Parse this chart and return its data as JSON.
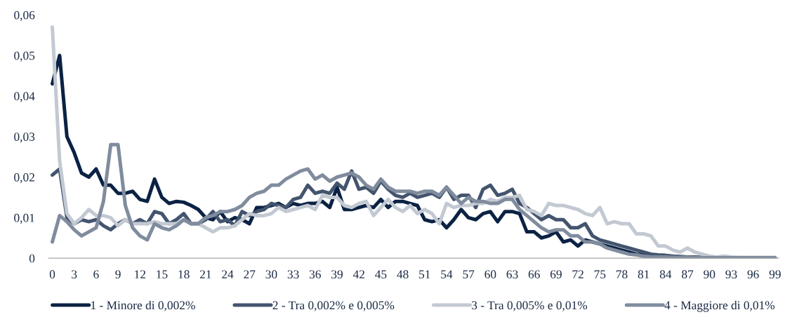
{
  "chart_data": {
    "type": "line",
    "x": [
      0,
      1,
      2,
      3,
      4,
      5,
      6,
      7,
      8,
      9,
      10,
      11,
      12,
      13,
      14,
      15,
      16,
      17,
      18,
      19,
      20,
      21,
      22,
      23,
      24,
      25,
      26,
      27,
      28,
      29,
      30,
      31,
      32,
      33,
      34,
      35,
      36,
      37,
      38,
      39,
      40,
      41,
      42,
      43,
      44,
      45,
      46,
      47,
      48,
      49,
      50,
      51,
      52,
      53,
      54,
      55,
      56,
      57,
      58,
      59,
      60,
      61,
      62,
      63,
      64,
      65,
      66,
      67,
      68,
      69,
      70,
      71,
      72,
      73,
      74,
      75,
      76,
      77,
      78,
      79,
      80,
      81,
      82,
      83,
      84,
      85,
      86,
      87,
      88,
      89,
      90,
      91,
      92,
      93,
      94,
      95,
      96,
      97,
      98,
      99
    ],
    "series": [
      {
        "name": "1 - Minore di 0,002%",
        "color": "#0b2244",
        "values": [
          0.043,
          0.05,
          0.03,
          0.026,
          0.021,
          0.02,
          0.022,
          0.018,
          0.018,
          0.016,
          0.016,
          0.0165,
          0.0145,
          0.014,
          0.0195,
          0.015,
          0.0135,
          0.014,
          0.0138,
          0.013,
          0.012,
          0.01,
          0.0095,
          0.0115,
          0.009,
          0.01,
          0.0095,
          0.0085,
          0.0125,
          0.0125,
          0.013,
          0.0135,
          0.0125,
          0.0135,
          0.013,
          0.0135,
          0.0135,
          0.014,
          0.0125,
          0.0175,
          0.012,
          0.012,
          0.0125,
          0.013,
          0.0125,
          0.0145,
          0.0125,
          0.014,
          0.014,
          0.0135,
          0.013,
          0.0095,
          0.009,
          0.0095,
          0.0075,
          0.0095,
          0.012,
          0.01,
          0.0095,
          0.011,
          0.0115,
          0.009,
          0.0115,
          0.0115,
          0.011,
          0.0065,
          0.0065,
          0.005,
          0.0055,
          0.0065,
          0.004,
          0.0045,
          0.003,
          0.0045,
          0.004,
          0.0035,
          0.003,
          0.0025,
          0.002,
          0.0015,
          0.001,
          0.0008,
          0.0007,
          0.0005,
          0.0004,
          0.0003,
          0.0003,
          0.0002,
          0.0002,
          0.0001,
          0.0001,
          0.0001,
          0.0001,
          0.0001,
          0.0001,
          0.0001,
          0,
          0,
          0,
          0
        ]
      },
      {
        "name": "2 - Tra 0,002% e 0,005%",
        "color": "#43546e",
        "values": [
          0.0205,
          0.022,
          0.01,
          0.0085,
          0.0095,
          0.009,
          0.0095,
          0.008,
          0.007,
          0.0085,
          0.0095,
          0.0085,
          0.0095,
          0.0085,
          0.0115,
          0.011,
          0.0085,
          0.0095,
          0.011,
          0.0085,
          0.0085,
          0.0095,
          0.0115,
          0.009,
          0.0095,
          0.008,
          0.0115,
          0.0105,
          0.0115,
          0.012,
          0.0135,
          0.013,
          0.0125,
          0.0145,
          0.015,
          0.018,
          0.016,
          0.0165,
          0.016,
          0.0185,
          0.017,
          0.0215,
          0.017,
          0.0175,
          0.016,
          0.019,
          0.017,
          0.0155,
          0.015,
          0.016,
          0.015,
          0.0155,
          0.016,
          0.015,
          0.0175,
          0.0145,
          0.0155,
          0.0155,
          0.0125,
          0.017,
          0.018,
          0.0155,
          0.016,
          0.017,
          0.0135,
          0.0125,
          0.011,
          0.0095,
          0.0105,
          0.0095,
          0.0095,
          0.0075,
          0.0075,
          0.0085,
          0.0055,
          0.0045,
          0.004,
          0.0035,
          0.003,
          0.0025,
          0.002,
          0.0015,
          0.001,
          0.0008,
          0.0007,
          0.0005,
          0.0004,
          0.0003,
          0.0003,
          0.0002,
          0.0002,
          0.0001,
          0.0001,
          0.0001,
          0.0001,
          0.0001,
          0,
          0,
          0,
          0
        ]
      },
      {
        "name": "3 - Tra 0,005% e 0,01%",
        "color": "#c3c9d2",
        "values": [
          0.057,
          0.024,
          0.011,
          0.0085,
          0.01,
          0.012,
          0.0105,
          0.0105,
          0.01,
          0.008,
          0.0095,
          0.0085,
          0.0085,
          0.0085,
          0.009,
          0.0085,
          0.0085,
          0.0085,
          0.0095,
          0.0085,
          0.0085,
          0.0075,
          0.0065,
          0.0075,
          0.0075,
          0.008,
          0.0095,
          0.011,
          0.0105,
          0.0105,
          0.011,
          0.0125,
          0.0115,
          0.012,
          0.0125,
          0.013,
          0.012,
          0.0155,
          0.015,
          0.015,
          0.013,
          0.0125,
          0.0135,
          0.014,
          0.0105,
          0.0125,
          0.0145,
          0.0125,
          0.0115,
          0.013,
          0.011,
          0.012,
          0.011,
          0.0085,
          0.0135,
          0.0125,
          0.013,
          0.013,
          0.0135,
          0.0135,
          0.0145,
          0.014,
          0.015,
          0.015,
          0.0155,
          0.012,
          0.0115,
          0.0105,
          0.0135,
          0.013,
          0.013,
          0.0125,
          0.012,
          0.011,
          0.0105,
          0.0125,
          0.0085,
          0.009,
          0.0085,
          0.0085,
          0.006,
          0.006,
          0.0055,
          0.003,
          0.003,
          0.002,
          0.0015,
          0.0025,
          0.0015,
          0.001,
          0.0005,
          0.0003,
          0.0005,
          0.0003,
          0.0002,
          0.0002,
          0.0002,
          0.0002,
          0.0002,
          0.0002
        ]
      },
      {
        "name": "4 - Maggiore di 0,01%",
        "color": "#808c9e",
        "values": [
          0.004,
          0.0105,
          0.009,
          0.007,
          0.0055,
          0.0065,
          0.0075,
          0.014,
          0.028,
          0.028,
          0.013,
          0.0075,
          0.0055,
          0.0045,
          0.0085,
          0.0075,
          0.007,
          0.008,
          0.0095,
          0.0085,
          0.0085,
          0.01,
          0.0105,
          0.0115,
          0.0115,
          0.012,
          0.013,
          0.015,
          0.016,
          0.0165,
          0.018,
          0.018,
          0.0195,
          0.0205,
          0.0215,
          0.022,
          0.0195,
          0.0205,
          0.019,
          0.02,
          0.0205,
          0.021,
          0.02,
          0.018,
          0.017,
          0.0195,
          0.0175,
          0.0165,
          0.0165,
          0.0165,
          0.016,
          0.0165,
          0.0165,
          0.0155,
          0.0175,
          0.0155,
          0.0135,
          0.015,
          0.014,
          0.014,
          0.0135,
          0.0135,
          0.0145,
          0.0145,
          0.012,
          0.0105,
          0.009,
          0.0075,
          0.0065,
          0.007,
          0.007,
          0.0055,
          0.0055,
          0.004,
          0.004,
          0.0035,
          0.0025,
          0.002,
          0.0015,
          0.001,
          0.0008,
          0.0005,
          0.0003,
          0.0003,
          0.0003,
          0.0002,
          0.0002,
          0.0002,
          0.0001,
          0.0001,
          0.0001,
          0.0001,
          0.0001,
          0.0001,
          0.0001,
          0.0001,
          0.0001,
          0.0001,
          0.0001,
          0.0001
        ]
      }
    ],
    "xlim": [
      -0.5,
      99.5
    ],
    "xticks": [
      0,
      3,
      6,
      9,
      12,
      15,
      18,
      21,
      24,
      27,
      30,
      33,
      36,
      39,
      42,
      45,
      48,
      51,
      54,
      57,
      60,
      63,
      66,
      69,
      72,
      75,
      78,
      81,
      84,
      87,
      90,
      93,
      96,
      99
    ],
    "ylim": [
      0,
      0.06
    ],
    "yticks": [
      {
        "value": 0,
        "label": "0"
      },
      {
        "value": 0.01,
        "label": "0,01"
      },
      {
        "value": 0.02,
        "label": "0,02"
      },
      {
        "value": 0.03,
        "label": "0,03"
      },
      {
        "value": 0.04,
        "label": "0,04"
      },
      {
        "value": 0.05,
        "label": "0,05"
      },
      {
        "value": 0.06,
        "label": "0,06"
      }
    ],
    "grid": false,
    "legend": "bottom",
    "marker": "none",
    "line_style": "solid"
  }
}
